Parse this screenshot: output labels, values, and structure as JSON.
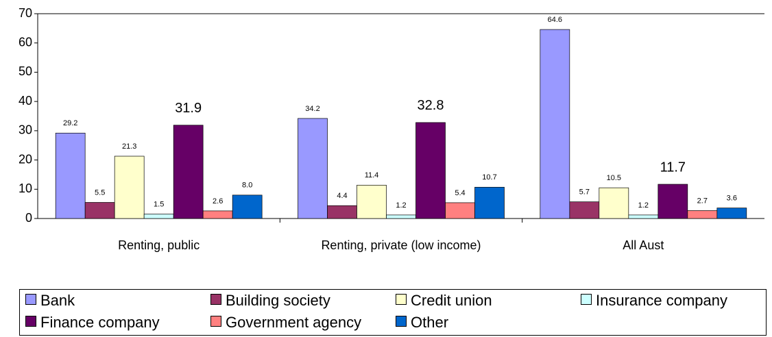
{
  "chart_data": {
    "type": "bar",
    "categories": [
      "Renting, public",
      "Renting, private (low income)",
      "All Aust"
    ],
    "series": [
      {
        "name": "Bank",
        "color": "#9999ff",
        "values": [
          29.2,
          34.2,
          64.6
        ]
      },
      {
        "name": "Building society",
        "color": "#993366",
        "values": [
          5.5,
          4.4,
          5.7
        ]
      },
      {
        "name": "Credit union",
        "color": "#ffffcc",
        "values": [
          21.3,
          11.4,
          10.5
        ]
      },
      {
        "name": "Insurance company",
        "color": "#ccffff",
        "values": [
          1.5,
          1.2,
          1.2
        ]
      },
      {
        "name": "Finance company",
        "color": "#660066",
        "values": [
          31.9,
          32.8,
          11.7
        ]
      },
      {
        "name": "Government agency",
        "color": "#ff8080",
        "values": [
          2.6,
          5.4,
          2.7
        ]
      },
      {
        "name": "Other",
        "color": "#0066cc",
        "values": [
          {
            "value": 8,
            "label": "8.0"
          },
          10.7,
          3.6
        ]
      }
    ],
    "ylim": [
      0,
      70
    ],
    "yticks": [
      0,
      10,
      20,
      30,
      40,
      50,
      60,
      70
    ],
    "grid": false
  }
}
